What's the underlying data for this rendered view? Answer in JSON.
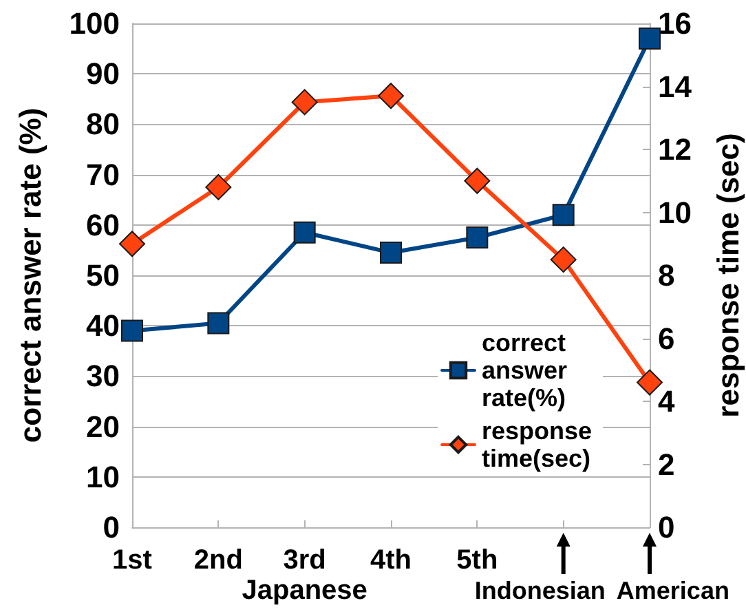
{
  "chart_data": {
    "type": "line",
    "categories": [
      "1st",
      "2nd",
      "3rd",
      "4th",
      "5th",
      "Indonesian",
      "American"
    ],
    "xlabel": "Japanese",
    "ylabel": "correct answer rate (%)",
    "y2label": "response time (sec)",
    "series": [
      {
        "name": "correct answer rate(%)",
        "color": "#004586",
        "marker": "square",
        "values": [
          39,
          40.5,
          58.5,
          54.5,
          57.5,
          62,
          97
        ]
      },
      {
        "name": "response time(sec)",
        "color": "#ff420e",
        "marker": "diamond",
        "axis": "y2",
        "values": [
          9,
          10.8,
          13.5,
          13.7,
          11,
          8.5,
          4.6
        ]
      }
    ],
    "ylim": [
      0,
      100
    ],
    "yticks": [
      0,
      10,
      20,
      30,
      40,
      50,
      60,
      70,
      80,
      90,
      100
    ],
    "y2lim": [
      0,
      16
    ],
    "y2ticks": [
      0,
      2,
      4,
      6,
      8,
      10,
      12,
      14,
      16
    ],
    "grid": "y",
    "legend": "bottom right"
  }
}
